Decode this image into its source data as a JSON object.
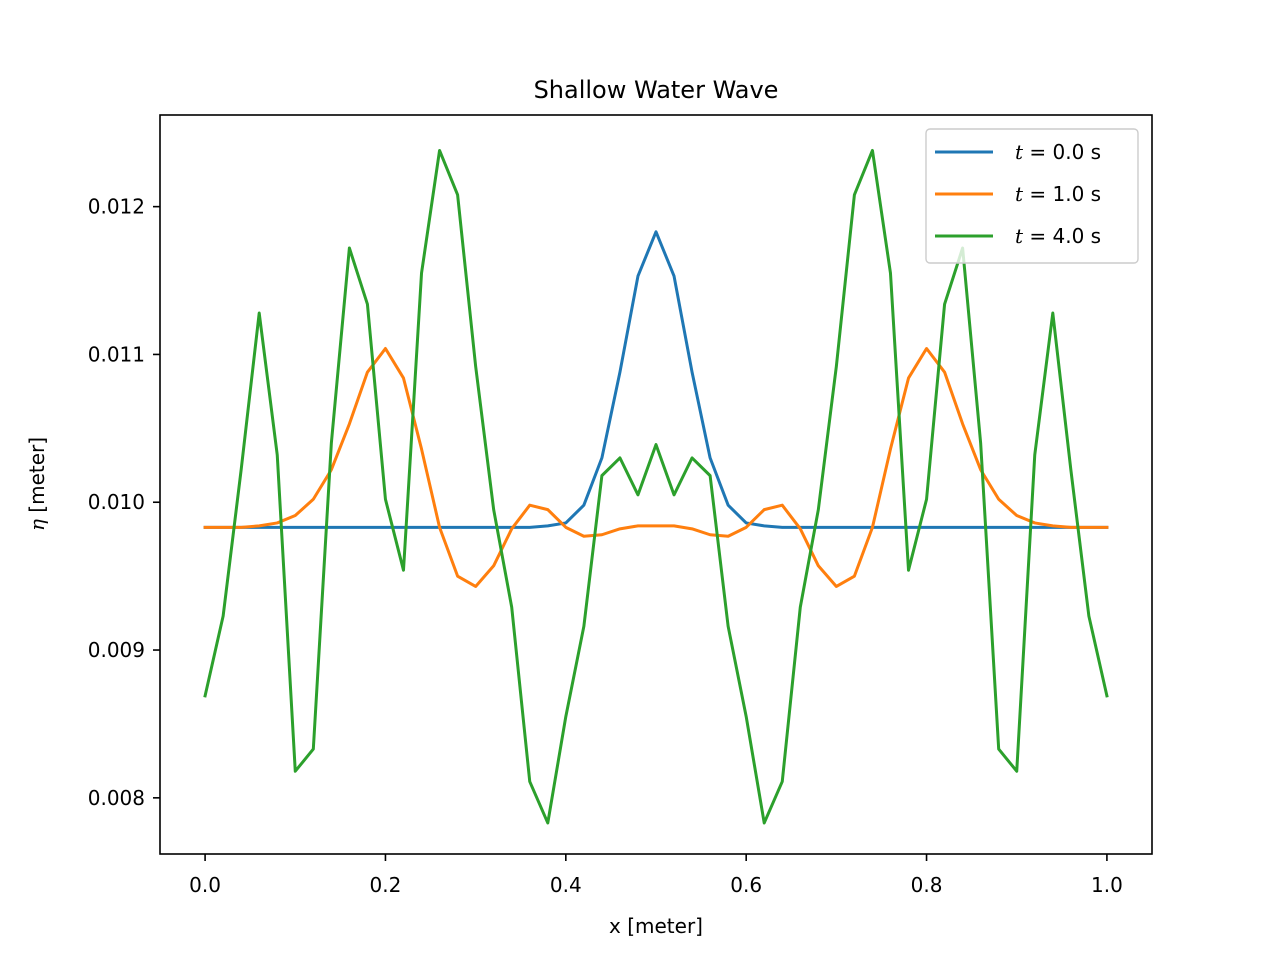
{
  "chart_data": {
    "type": "line",
    "title": "Shallow Water Wave",
    "xlabel": "x [meter]",
    "ylabel": {
      "symbol": "η",
      "unit": " [meter]"
    },
    "xlim": [
      -0.05,
      1.05
    ],
    "ylim": [
      0.00762,
      0.01262
    ],
    "xticks": [
      0.0,
      0.2,
      0.4,
      0.6,
      0.8,
      1.0
    ],
    "xtick_labels": [
      "0.0",
      "0.2",
      "0.4",
      "0.6",
      "0.8",
      "1.0"
    ],
    "yticks": [
      0.008,
      0.009,
      0.01,
      0.011,
      0.012
    ],
    "ytick_labels": [
      "0.008",
      "0.009",
      "0.010",
      "0.011",
      "0.012"
    ],
    "grid": false,
    "legend_position": "top-right",
    "x": [
      0.0,
      0.02,
      0.04,
      0.06,
      0.08,
      0.1,
      0.12,
      0.14,
      0.16,
      0.18,
      0.2,
      0.22,
      0.24,
      0.26,
      0.28,
      0.3,
      0.32,
      0.34,
      0.36,
      0.38,
      0.4,
      0.42,
      0.44,
      0.46,
      0.48,
      0.5,
      0.52,
      0.54,
      0.56,
      0.58,
      0.6,
      0.62,
      0.64,
      0.66,
      0.68,
      0.7,
      0.72,
      0.74,
      0.76,
      0.78,
      0.8,
      0.82,
      0.84,
      0.86,
      0.88,
      0.9,
      0.92,
      0.94,
      0.96,
      0.98,
      1.0
    ],
    "series": [
      {
        "name_var": "t",
        "name_rest": " = 0.0 s",
        "color": "#1f77b4",
        "values": [
          0.00983,
          0.00983,
          0.00983,
          0.00983,
          0.00983,
          0.00983,
          0.00983,
          0.00983,
          0.00983,
          0.00983,
          0.00983,
          0.00983,
          0.00983,
          0.00983,
          0.00983,
          0.00983,
          0.00983,
          0.00983,
          0.00983,
          0.00984,
          0.00986,
          0.00998,
          0.0103,
          0.01088,
          0.01153,
          0.01183,
          0.01153,
          0.01088,
          0.0103,
          0.00998,
          0.00986,
          0.00984,
          0.00983,
          0.00983,
          0.00983,
          0.00983,
          0.00983,
          0.00983,
          0.00983,
          0.00983,
          0.00983,
          0.00983,
          0.00983,
          0.00983,
          0.00983,
          0.00983,
          0.00983,
          0.00983,
          0.00983,
          0.00983,
          0.00983
        ]
      },
      {
        "name_var": "t",
        "name_rest": " = 1.0 s",
        "color": "#ff7f0e",
        "values": [
          0.00983,
          0.00983,
          0.00983,
          0.00984,
          0.00986,
          0.00991,
          0.01002,
          0.01022,
          0.01053,
          0.01088,
          0.01104,
          0.01084,
          0.01036,
          0.00983,
          0.0095,
          0.00943,
          0.00957,
          0.00982,
          0.00998,
          0.00995,
          0.00983,
          0.00977,
          0.00978,
          0.00982,
          0.00984,
          0.00984,
          0.00984,
          0.00982,
          0.00978,
          0.00977,
          0.00983,
          0.00995,
          0.00998,
          0.00982,
          0.00957,
          0.00943,
          0.0095,
          0.00983,
          0.01036,
          0.01084,
          0.01104,
          0.01088,
          0.01053,
          0.01022,
          0.01002,
          0.00991,
          0.00986,
          0.00984,
          0.00983,
          0.00983,
          0.00983
        ]
      },
      {
        "name_var": "t",
        "name_rest": " = 4.0 s",
        "color": "#2ca02c",
        "values": [
          0.00869,
          0.00923,
          0.01022,
          0.01128,
          0.01032,
          0.00818,
          0.00833,
          0.0104,
          0.01172,
          0.01134,
          0.01002,
          0.00954,
          0.01155,
          0.01238,
          0.01208,
          0.01092,
          0.00995,
          0.00929,
          0.00811,
          0.00783,
          0.00855,
          0.00916,
          0.01018,
          0.0103,
          0.01005,
          0.01039,
          0.01005,
          0.0103,
          0.01018,
          0.00916,
          0.00855,
          0.00783,
          0.00811,
          0.00929,
          0.00995,
          0.01092,
          0.01208,
          0.01238,
          0.01155,
          0.00954,
          0.01002,
          0.01134,
          0.01172,
          0.0104,
          0.00833,
          0.00818,
          0.01032,
          0.01128,
          0.01022,
          0.00923,
          0.00869
        ]
      }
    ]
  }
}
